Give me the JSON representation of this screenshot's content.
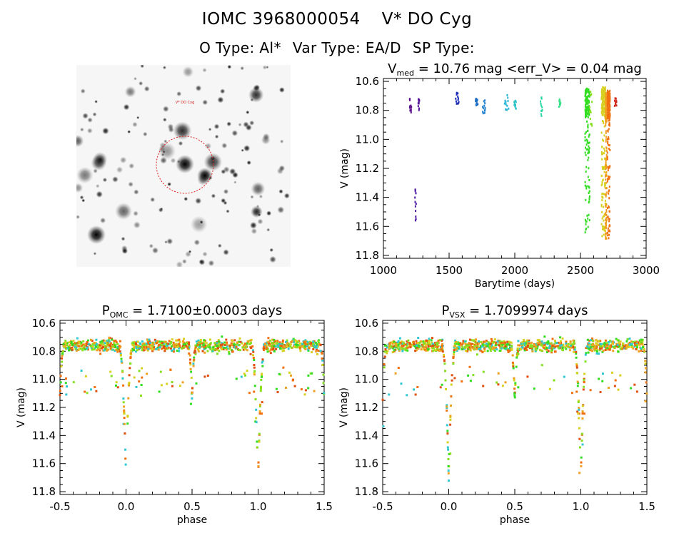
{
  "header": {
    "line1": {
      "id": "IOMC 3968000054",
      "name": "V* DO Cyg"
    },
    "line2": {
      "otype": "O Type: Al*",
      "vartype": "Var Type: EA/D",
      "sptype": "SP Type:"
    }
  },
  "image_panel": {
    "labels": [
      "V* DO Cyg"
    ]
  },
  "chart_data": [
    {
      "type": "scatter",
      "title_parts": {
        "sym": "V",
        "sub": "med",
        "rest": " = 10.76 mag <err_V> = 0.04 mag"
      },
      "xlabel": "Barytime (days)",
      "ylabel": "V (mag)",
      "xlim": [
        1000,
        3000
      ],
      "ylim": [
        11.82,
        10.58
      ],
      "xticks": [
        1000,
        1500,
        2000,
        2500,
        3000
      ],
      "yticks": [
        10.6,
        10.8,
        11.0,
        11.2,
        11.4,
        11.6,
        11.8
      ],
      "grid": false,
      "groups": [
        {
          "x": [
            1200,
            1215
          ],
          "y": [
            10.72,
            10.83
          ],
          "color": "#5e0f8c"
        },
        {
          "x": [
            1240,
            1250
          ],
          "y": [
            11.33,
            11.57
          ],
          "color": "#4b1aa0"
        },
        {
          "x": [
            1265,
            1275
          ],
          "y": [
            10.71,
            10.8
          ],
          "color": "#55149a"
        },
        {
          "x": [
            1550,
            1575
          ],
          "y": [
            10.66,
            10.76
          ],
          "color": "#1c2ab8"
        },
        {
          "x": [
            1700,
            1720
          ],
          "y": [
            10.72,
            10.78
          ],
          "color": "#1f6fc4"
        },
        {
          "x": [
            1755,
            1775
          ],
          "y": [
            10.73,
            10.82
          ],
          "color": "#1f7fcc"
        },
        {
          "x": [
            1920,
            1955
          ],
          "y": [
            10.69,
            10.8
          ],
          "color": "#27b4d8"
        },
        {
          "x": [
            1995,
            2010
          ],
          "y": [
            10.73,
            10.79
          ],
          "color": "#28c2c4"
        },
        {
          "x": [
            2195,
            2210
          ],
          "y": [
            10.71,
            10.85
          ],
          "color": "#2dd8a6"
        },
        {
          "x": [
            2335,
            2350
          ],
          "y": [
            10.71,
            10.78
          ],
          "color": "#3de08a"
        },
        {
          "x": [
            2535,
            2570
          ],
          "y": [
            10.65,
            11.66
          ],
          "color": "#33dd22"
        },
        {
          "x": [
            2570,
            2590
          ],
          "y": [
            10.66,
            10.92
          ],
          "color": "#86e020"
        },
        {
          "x": [
            2660,
            2690
          ],
          "y": [
            10.64,
            11.68
          ],
          "color": "#d8d020"
        },
        {
          "x": [
            2690,
            2700
          ],
          "y": [
            10.68,
            11.7
          ],
          "color": "#f0a020"
        },
        {
          "x": [
            2705,
            2725
          ],
          "y": [
            10.66,
            11.69
          ],
          "color": "#f07010"
        },
        {
          "x": [
            2760,
            2775
          ],
          "y": [
            10.7,
            10.8
          ],
          "color": "#d0281c"
        }
      ]
    },
    {
      "type": "scatter",
      "title_parts": {
        "sym": "P",
        "sub": "OMC",
        "rest": " = 1.7100±0.0003 days"
      },
      "xlabel": "phase",
      "ylabel": "V (mag)",
      "xlim": [
        -0.5,
        1.5
      ],
      "ylim": [
        11.82,
        10.58
      ],
      "xticks": [
        -0.5,
        0.0,
        0.5,
        1.0,
        1.5
      ],
      "yticks": [
        10.6,
        10.8,
        11.0,
        11.2,
        11.4,
        11.6,
        11.8
      ],
      "grid": false,
      "light_curve": {
        "baseline_mag": 10.76,
        "primary_eclipse": {
          "phase": 0.0,
          "depth_mag": 11.7,
          "halfwidth": 0.05
        },
        "secondary_eclipse": {
          "phase": 0.5,
          "depth_mag": 11.12,
          "halfwidth": 0.03
        },
        "scatter_mag": 0.06
      }
    },
    {
      "type": "scatter",
      "title_parts": {
        "sym": "P",
        "sub": "VSX",
        "rest": " = 1.7099974 days"
      },
      "xlabel": "phase",
      "ylabel": "V (mag)",
      "xlim": [
        -0.5,
        1.5
      ],
      "ylim": [
        11.82,
        10.58
      ],
      "xticks": [
        -0.5,
        0.0,
        0.5,
        1.0,
        1.5
      ],
      "yticks": [
        10.6,
        10.8,
        11.0,
        11.2,
        11.4,
        11.6,
        11.8
      ],
      "grid": false,
      "light_curve": {
        "baseline_mag": 10.76,
        "primary_eclipse": {
          "phase": 0.0,
          "depth_mag": 11.7,
          "halfwidth": 0.05
        },
        "secondary_eclipse": {
          "phase": 0.5,
          "depth_mag": 11.12,
          "halfwidth": 0.03
        },
        "scatter_mag": 0.06
      }
    }
  ],
  "palette": [
    "#33dd22",
    "#86e020",
    "#d8d020",
    "#f0a020",
    "#f07010",
    "#e05010",
    "#30c8d0"
  ]
}
